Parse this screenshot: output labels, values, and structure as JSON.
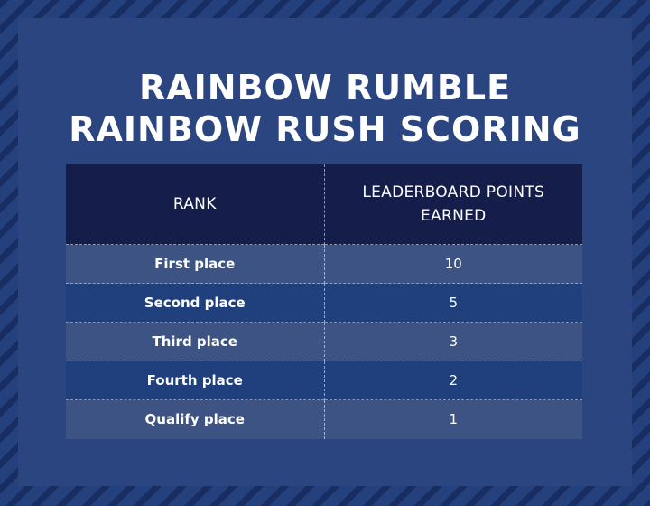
{
  "title": {
    "line1": "RAINBOW RUMBLE",
    "line2": "RAINBOW RUSH SCORING"
  },
  "table": {
    "headers": [
      "RANK",
      "LEADERBOARD POINTS EARNED"
    ],
    "rows": [
      {
        "rank": "First place",
        "points": "10"
      },
      {
        "rank": "Second place",
        "points": "5"
      },
      {
        "rank": "Third place",
        "points": "3"
      },
      {
        "rank": "Fourth place",
        "points": "2"
      },
      {
        "rank": "Qualify place",
        "points": "1"
      }
    ]
  }
}
